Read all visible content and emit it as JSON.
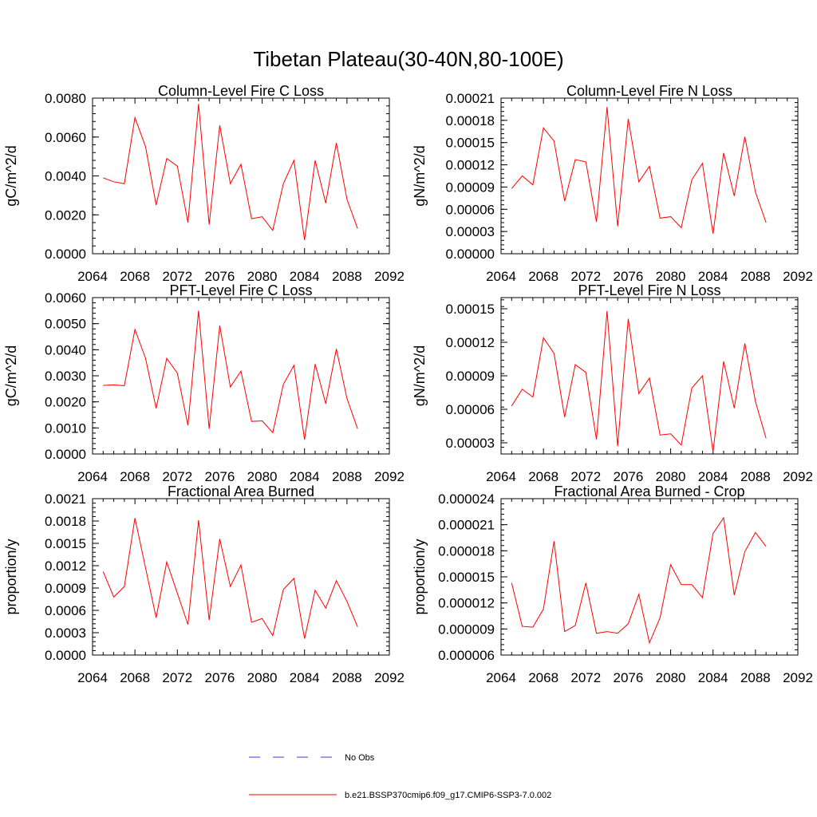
{
  "figure_title": "Tibetan Plateau(30-40N,80-100E)",
  "legend": {
    "entries": [
      {
        "label": "No Obs",
        "color": "#3b3bd6",
        "style": "dashed"
      },
      {
        "label": "b.e21.BSSP370cmip6.f09_g17.CMIP6-SSP3-7.0.002",
        "color": "#ff0000",
        "style": "solid"
      }
    ]
  },
  "chart_data": [
    {
      "type": "line",
      "title": "Column-Level Fire C Loss",
      "ylabel": "gC/m^2/d",
      "xlim": [
        2064,
        2092
      ],
      "ylim": [
        0,
        0.008
      ],
      "x_ticks": [
        2064,
        2068,
        2072,
        2076,
        2080,
        2084,
        2088,
        2092
      ],
      "y_ticks": [
        0,
        0.002,
        0.004,
        0.006,
        0.008
      ],
      "y_tick_labels": [
        "0.0000",
        "0.0020",
        "0.0040",
        "0.0060",
        "0.0080"
      ],
      "x": [
        2065,
        2066,
        2067,
        2068,
        2069,
        2070,
        2071,
        2072,
        2073,
        2074,
        2075,
        2076,
        2077,
        2078,
        2079,
        2080,
        2081,
        2082,
        2083,
        2084,
        2085,
        2086,
        2087,
        2088,
        2089
      ],
      "series": [
        {
          "color": "#ff0000",
          "values": [
            0.0039,
            0.0037,
            0.0036,
            0.007,
            0.0055,
            0.0025,
            0.0049,
            0.0045,
            0.0016,
            0.0077,
            0.0015,
            0.0066,
            0.0036,
            0.0046,
            0.0018,
            0.0019,
            0.0012,
            0.0036,
            0.0048,
            0.0007,
            0.0048,
            0.0026,
            0.0057,
            0.0028,
            0.0013
          ]
        }
      ]
    },
    {
      "type": "line",
      "title": "Column-Level Fire N Loss",
      "ylabel": "gN/m^2/d",
      "xlim": [
        2064,
        2092
      ],
      "ylim": [
        0,
        0.00021
      ],
      "x_ticks": [
        2064,
        2068,
        2072,
        2076,
        2080,
        2084,
        2088,
        2092
      ],
      "y_ticks": [
        0,
        3e-05,
        6e-05,
        9e-05,
        0.00012,
        0.00015,
        0.00018,
        0.00021
      ],
      "y_tick_labels": [
        "0.00000",
        "0.00003",
        "0.00006",
        "0.00009",
        "0.00012",
        "0.00015",
        "0.00018",
        "0.00021"
      ],
      "x": [
        2065,
        2066,
        2067,
        2068,
        2069,
        2070,
        2071,
        2072,
        2073,
        2074,
        2075,
        2076,
        2077,
        2078,
        2079,
        2080,
        2081,
        2082,
        2083,
        2084,
        2085,
        2086,
        2087,
        2088,
        2089
      ],
      "series": [
        {
          "color": "#ff0000",
          "values": [
            8.8e-05,
            0.000105,
            9.3e-05,
            0.00017,
            0.000152,
            7.1e-05,
            0.000127,
            0.000124,
            4.3e-05,
            0.000198,
            3.7e-05,
            0.000182,
            9.7e-05,
            0.000118,
            4.8e-05,
            5e-05,
            3.5e-05,
            0.0001,
            0.000122,
            2.7e-05,
            0.000136,
            7.8e-05,
            0.000158,
            8.3e-05,
            4.2e-05
          ]
        }
      ]
    },
    {
      "type": "line",
      "title": "PFT-Level Fire C Loss",
      "ylabel": "gC/m^2/d",
      "xlim": [
        2064,
        2092
      ],
      "ylim": [
        0,
        0.006
      ],
      "x_ticks": [
        2064,
        2068,
        2072,
        2076,
        2080,
        2084,
        2088,
        2092
      ],
      "y_ticks": [
        0,
        0.001,
        0.002,
        0.003,
        0.004,
        0.005,
        0.006
      ],
      "y_tick_labels": [
        "0.0000",
        "0.0010",
        "0.0020",
        "0.0030",
        "0.0040",
        "0.0050",
        "0.0060"
      ],
      "x": [
        2065,
        2066,
        2067,
        2068,
        2069,
        2070,
        2071,
        2072,
        2073,
        2074,
        2075,
        2076,
        2077,
        2078,
        2079,
        2080,
        2081,
        2082,
        2083,
        2084,
        2085,
        2086,
        2087,
        2088,
        2089
      ],
      "series": [
        {
          "color": "#ff0000",
          "values": [
            0.00263,
            0.00265,
            0.00262,
            0.00478,
            0.00367,
            0.00175,
            0.00367,
            0.0031,
            0.0011,
            0.0055,
            0.00097,
            0.00493,
            0.00257,
            0.00318,
            0.00125,
            0.00127,
            0.00082,
            0.00267,
            0.0034,
            0.00055,
            0.00345,
            0.00193,
            0.00403,
            0.00213,
            0.00097
          ]
        }
      ]
    },
    {
      "type": "line",
      "title": "PFT-Level Fire N Loss",
      "ylabel": "gN/m^2/d",
      "xlim": [
        2064,
        2092
      ],
      "ylim": [
        2e-05,
        0.00016
      ],
      "x_ticks": [
        2064,
        2068,
        2072,
        2076,
        2080,
        2084,
        2088,
        2092
      ],
      "y_ticks": [
        3e-05,
        6e-05,
        9e-05,
        0.00012,
        0.00015
      ],
      "y_tick_labels": [
        "0.00003",
        "0.00006",
        "0.00009",
        "0.00012",
        "0.00015"
      ],
      "x": [
        2065,
        2066,
        2067,
        2068,
        2069,
        2070,
        2071,
        2072,
        2073,
        2074,
        2075,
        2076,
        2077,
        2078,
        2079,
        2080,
        2081,
        2082,
        2083,
        2084,
        2085,
        2086,
        2087,
        2088,
        2089
      ],
      "series": [
        {
          "color": "#ff0000",
          "values": [
            6.3e-05,
            7.8e-05,
            7.1e-05,
            0.000124,
            0.00011,
            5.3e-05,
            0.0001,
            9.3e-05,
            3.3e-05,
            0.000148,
            2.7e-05,
            0.000141,
            7.4e-05,
            8.8e-05,
            3.7e-05,
            3.8e-05,
            2.8e-05,
            7.9e-05,
            9e-05,
            2.2e-05,
            0.000103,
            6.1e-05,
            0.000119,
            6.7e-05,
            3.4e-05
          ]
        }
      ]
    },
    {
      "type": "line",
      "title": "Fractional Area Burned",
      "ylabel": "proportion/y",
      "xlim": [
        2064,
        2092
      ],
      "ylim": [
        0,
        0.0021
      ],
      "x_ticks": [
        2064,
        2068,
        2072,
        2076,
        2080,
        2084,
        2088,
        2092
      ],
      "y_ticks": [
        0,
        0.0003,
        0.0006,
        0.0009,
        0.0012,
        0.0015,
        0.0018,
        0.0021
      ],
      "y_tick_labels": [
        "0.0000",
        "0.0003",
        "0.0006",
        "0.0009",
        "0.0012",
        "0.0015",
        "0.0018",
        "0.0021"
      ],
      "x": [
        2065,
        2066,
        2067,
        2068,
        2069,
        2070,
        2071,
        2072,
        2073,
        2074,
        2075,
        2076,
        2077,
        2078,
        2079,
        2080,
        2081,
        2082,
        2083,
        2084,
        2085,
        2086,
        2087,
        2088,
        2089
      ],
      "series": [
        {
          "color": "#ff0000",
          "values": [
            0.00112,
            0.00078,
            0.00092,
            0.00184,
            0.00117,
            0.0005,
            0.00125,
            0.00083,
            0.00041,
            0.00181,
            0.00047,
            0.00156,
            0.00092,
            0.00121,
            0.00044,
            0.00049,
            0.00026,
            0.00088,
            0.00103,
            0.00022,
            0.00087,
            0.00063,
            0.001,
            0.00072,
            0.00038
          ]
        }
      ]
    },
    {
      "type": "line",
      "title": "Fractional Area Burned - Crop",
      "ylabel": "proportion/y",
      "xlim": [
        2064,
        2092
      ],
      "ylim": [
        6e-06,
        2.4e-05
      ],
      "x_ticks": [
        2064,
        2068,
        2072,
        2076,
        2080,
        2084,
        2088,
        2092
      ],
      "y_ticks": [
        6e-06,
        9e-06,
        1.2e-05,
        1.5e-05,
        1.8e-05,
        2.1e-05,
        2.4e-05
      ],
      "y_tick_labels": [
        "0.000006",
        "0.000009",
        "0.000012",
        "0.000015",
        "0.000018",
        "0.000021",
        "0.000024"
      ],
      "x": [
        2065,
        2066,
        2067,
        2068,
        2069,
        2070,
        2071,
        2072,
        2073,
        2074,
        2075,
        2076,
        2077,
        2078,
        2079,
        2080,
        2081,
        2082,
        2083,
        2084,
        2085,
        2086,
        2087,
        2088,
        2089
      ],
      "series": [
        {
          "color": "#ff0000",
          "values": [
            1.43e-05,
            9.3e-06,
            9.2e-06,
            1.13e-05,
            1.91e-05,
            8.7e-06,
            9.4e-06,
            1.43e-05,
            8.5e-06,
            8.7e-06,
            8.5e-06,
            9.6e-06,
            1.3e-05,
            7.4e-06,
            1.03e-05,
            1.64e-05,
            1.41e-05,
            1.41e-05,
            1.26e-05,
            2e-05,
            2.18e-05,
            1.29e-05,
            1.79e-05,
            2.01e-05,
            1.85e-05
          ]
        }
      ]
    }
  ]
}
